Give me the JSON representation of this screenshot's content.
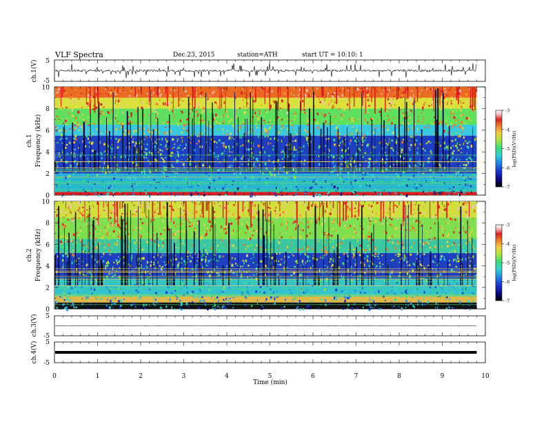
{
  "header": {
    "title": "VLF  Spectra",
    "date": "Dec.23, 2015",
    "station": "station=ATH",
    "start": "start  UT  =   10:10: 1"
  },
  "chart_data": [
    {
      "type": "line",
      "panel": "ch1-waveform",
      "ylabel": "ch.1(V)",
      "ylim": [
        -5,
        5
      ],
      "yticks": [
        "5",
        "-5"
      ],
      "baseline": 0,
      "series_description": "dense noisy waveform around 0 V with spikes to about ±1.5 V"
    },
    {
      "type": "heatmap",
      "panel": "ch1-spectrogram",
      "ylabel": [
        "ch.1",
        "Frequency  (kHz)"
      ],
      "ylim": [
        0,
        10
      ],
      "yticks": [
        "0",
        "2",
        "4",
        "6",
        "8",
        "10"
      ],
      "xlim": [
        0,
        10
      ],
      "data_extent_min": 9.8,
      "bands": [
        {
          "range": [
            0,
            0.3
          ],
          "color": "#d81e1e"
        },
        {
          "range": [
            0.3,
            2
          ],
          "color": "#27b4d6"
        },
        {
          "range": [
            2,
            5.5
          ],
          "color": "#1e3fbf"
        },
        {
          "range": [
            5.5,
            6.5
          ],
          "color": "#38c8e0"
        },
        {
          "range": [
            6.5,
            8
          ],
          "color": "#5ee05e"
        },
        {
          "range": [
            8,
            9
          ],
          "color": "#d8e23a"
        },
        {
          "range": [
            9,
            10
          ],
          "color": "#ea6a22"
        }
      ]
    },
    {
      "type": "heatmap",
      "panel": "ch2-spectrogram",
      "ylabel": [
        "ch.2",
        "Frequency  (kHz)"
      ],
      "ylim": [
        0,
        10
      ],
      "yticks": [
        "0",
        "2",
        "4",
        "6",
        "8",
        "10"
      ],
      "xlim": [
        0,
        10
      ],
      "data_extent_min": 9.8,
      "bands": [
        {
          "range": [
            0,
            0.6
          ],
          "color": "#111111"
        },
        {
          "range": [
            0.6,
            1.2
          ],
          "color": "#e0b84a"
        },
        {
          "range": [
            1.2,
            2.8
          ],
          "color": "#35c2cf"
        },
        {
          "range": [
            2.8,
            5.2
          ],
          "color": "#1e3fbf"
        },
        {
          "range": [
            5.2,
            6.5
          ],
          "color": "#3bc7a2"
        },
        {
          "range": [
            6.5,
            8.5
          ],
          "color": "#7ee04e"
        },
        {
          "range": [
            8.5,
            10
          ],
          "color": "#cfe03c"
        }
      ]
    },
    {
      "type": "line",
      "panel": "ch3-waveform",
      "ylabel": "ch.3(V)",
      "ylim": [
        -5,
        5
      ],
      "yticks": [
        "5",
        "-5"
      ],
      "series_description": "flat near 0 V (no signal)"
    },
    {
      "type": "line",
      "panel": "ch4-waveform",
      "ylabel": "ch.4(V)",
      "ylim": [
        -5,
        5
      ],
      "yticks": [
        "5",
        "-5"
      ],
      "constant_value": 0,
      "series_description": "thick flat trace at about 0 V"
    }
  ],
  "colorbars": [
    {
      "label": "log(PSD)(V²/Hz)",
      "ticks": [
        "-3",
        "-4",
        "-5",
        "-6",
        "-7"
      ],
      "range": [
        -7,
        -3
      ]
    },
    {
      "label": "log(PSD)(V²/Hz)",
      "ticks": [
        "-3",
        "-4",
        "-5",
        "-6",
        "-7"
      ],
      "range": [
        -7,
        -3
      ]
    }
  ],
  "colormap": [
    "#000000",
    "#08087a",
    "#1c2fd4",
    "#1e8fe8",
    "#2fd6d0",
    "#3de070",
    "#b8e23a",
    "#f0d040",
    "#f07a28",
    "#e02020",
    "#f5c0c0",
    "#ffffff"
  ],
  "time_axis": {
    "label": "Time  (min)",
    "ticks": [
      "0",
      "1",
      "2",
      "3",
      "4",
      "5",
      "6",
      "7",
      "8",
      "9",
      "10"
    ],
    "range": [
      0,
      10
    ]
  }
}
